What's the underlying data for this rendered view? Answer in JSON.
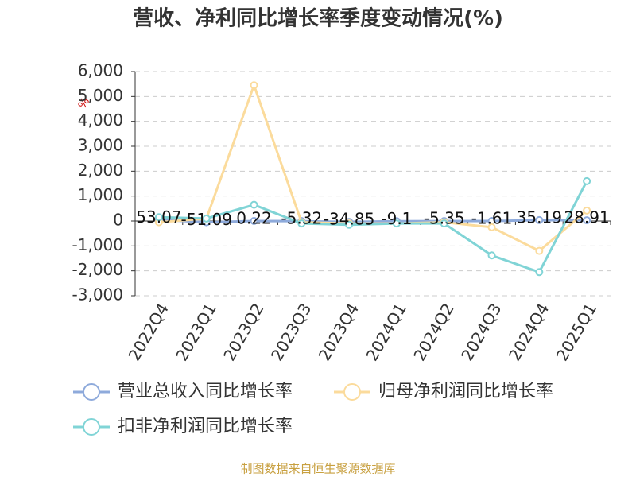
{
  "chart_data": {
    "type": "line",
    "title": "营收、净利同比增长率季度变动情况(%)",
    "y_unit": "%",
    "source": "制图数据来自恒生聚源数据库",
    "categories": [
      "2022Q4",
      "2023Q1",
      "2023Q2",
      "2023Q3",
      "2023Q4",
      "2024Q1",
      "2024Q2",
      "2024Q3",
      "2024Q4",
      "2025Q1"
    ],
    "series": [
      {
        "name": "营业总收入同比增长率",
        "color": "#8eaadb",
        "values": [
          53.07,
          -51.09,
          0.22,
          -5.32,
          -34.85,
          -9.1,
          -5.35,
          -1.61,
          35.19,
          28.91
        ],
        "show_labels": true
      },
      {
        "name": "归母净利润同比增长率",
        "color": "#fbdb9c",
        "values": [
          -50,
          100,
          5450,
          -50,
          -100,
          -100,
          -50,
          -250,
          -1200,
          420
        ]
      },
      {
        "name": "扣非净利润同比增长率",
        "color": "#80d4d6",
        "values": [
          150,
          100,
          650,
          -100,
          -150,
          -100,
          -100,
          -1380,
          -2050,
          1600
        ]
      }
    ],
    "ylim": [
      -3000,
      6000
    ],
    "yticks": [
      {
        "value": 6000,
        "label": "6,000"
      },
      {
        "value": 5000,
        "label": "5,000"
      },
      {
        "value": 4000,
        "label": "4,000"
      },
      {
        "value": 3000,
        "label": "3,000"
      },
      {
        "value": 2000,
        "label": "2,000"
      },
      {
        "value": 1000,
        "label": "1,000"
      },
      0,
      {
        "value": -1000,
        "label": "-1,000"
      },
      {
        "value": -2000,
        "label": "-2,000"
      },
      {
        "value": -3000,
        "label": "-3,000"
      }
    ],
    "grid": true
  }
}
